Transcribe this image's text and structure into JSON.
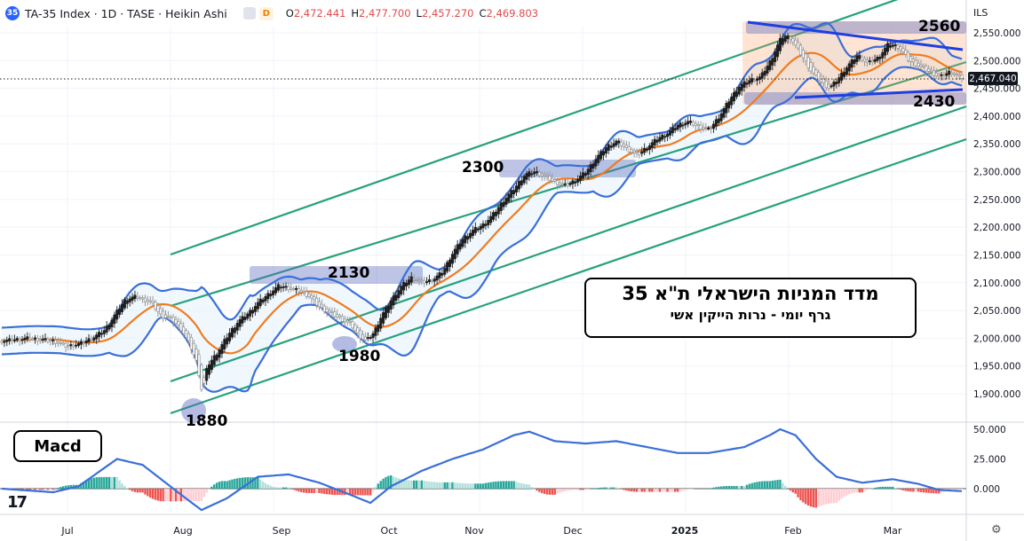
{
  "header": {
    "symbol_badge": "35",
    "title": "TA-35 Index · 1D · TASE · Heikin Ashi",
    "d_badge": "D",
    "ohlc": [
      {
        "k": "O",
        "v": "2,472.441"
      },
      {
        "k": "H",
        "v": "2,477.700"
      },
      {
        "k": "L",
        "v": "2,457.270"
      },
      {
        "k": "C",
        "v": "2,469.803"
      }
    ]
  },
  "currency": "ILS",
  "last_price_label": "2,467.040",
  "annotation_title": {
    "line1": "מדד המניות הישראלי ת\"א 35",
    "line2": "גרף  יומי   -  נרות הייקין אשי"
  },
  "macd_label": "Macd",
  "tv_logo": "17",
  "gear_icon": "⚙",
  "colors": {
    "up": "#1e1e1e",
    "down": "#e0e0e0",
    "channel": "#26a17b",
    "bollinger": "#3a6fd8",
    "ma": "#f07c1e",
    "trend": "#1f3ee0",
    "hist_pos": "#26a69a",
    "hist_neg": "#ef5350"
  },
  "chart_data": {
    "type": "candlestick",
    "price_axis": {
      "ticks": [
        "2,550.000",
        "2,500.000",
        "2,450.000",
        "2,400.000",
        "2,350.000",
        "2,300.000",
        "2,250.000",
        "2,200.000",
        "2,150.000",
        "2,100.000",
        "2,050.000",
        "2,000.000",
        "1,950.000",
        "1,900.000"
      ],
      "tick_values": [
        2550,
        2500,
        2450,
        2400,
        2350,
        2300,
        2250,
        2200,
        2150,
        2100,
        2050,
        2000,
        1950,
        1900
      ]
    },
    "macd_axis": {
      "ticks": [
        "50.000",
        "25.000",
        "0.000"
      ],
      "tick_values": [
        50,
        25,
        0
      ]
    },
    "time_axis": {
      "labels": [
        "Jul",
        "Aug",
        "Sep",
        "Oct",
        "Nov",
        "Dec",
        "2025",
        "Feb",
        "Mar"
      ]
    },
    "key_levels": [
      {
        "label": "2560",
        "value": 2560
      },
      {
        "label": "2300",
        "value": 2300
      },
      {
        "label": "2130",
        "value": 2130
      },
      {
        "label": "1980",
        "value": 1980
      },
      {
        "label": "1880",
        "value": 1880
      },
      {
        "label": "2430",
        "value": 2430
      }
    ],
    "last_price": 2467.04,
    "price_anchors": [
      [
        0,
        1995
      ],
      [
        10,
        2000
      ],
      [
        20,
        1995
      ],
      [
        25,
        1985
      ],
      [
        30,
        1990
      ],
      [
        35,
        2000
      ],
      [
        40,
        2015
      ],
      [
        45,
        2050
      ],
      [
        48,
        2070
      ],
      [
        52,
        2075
      ],
      [
        58,
        2065
      ],
      [
        62,
        2040
      ],
      [
        66,
        2035
      ],
      [
        70,
        2015
      ],
      [
        73,
        1990
      ],
      [
        76,
        1955
      ],
      [
        78,
        1900
      ],
      [
        80,
        1950
      ],
      [
        84,
        1975
      ],
      [
        88,
        2005
      ],
      [
        92,
        2030
      ],
      [
        96,
        2045
      ],
      [
        100,
        2065
      ],
      [
        104,
        2080
      ],
      [
        108,
        2095
      ],
      [
        112,
        2090
      ],
      [
        116,
        2085
      ],
      [
        120,
        2075
      ],
      [
        124,
        2055
      ],
      [
        128,
        2045
      ],
      [
        132,
        2035
      ],
      [
        136,
        2025
      ],
      [
        139,
        2005
      ],
      [
        142,
        1995
      ],
      [
        145,
        2010
      ],
      [
        148,
        2040
      ],
      [
        152,
        2070
      ],
      [
        156,
        2095
      ],
      [
        160,
        2110
      ],
      [
        164,
        2100
      ],
      [
        168,
        2105
      ],
      [
        172,
        2120
      ],
      [
        176,
        2155
      ],
      [
        180,
        2180
      ],
      [
        184,
        2195
      ],
      [
        188,
        2205
      ],
      [
        192,
        2225
      ],
      [
        196,
        2250
      ],
      [
        200,
        2270
      ],
      [
        204,
        2295
      ],
      [
        208,
        2300
      ],
      [
        212,
        2290
      ],
      [
        216,
        2280
      ],
      [
        220,
        2275
      ],
      [
        224,
        2285
      ],
      [
        228,
        2300
      ],
      [
        232,
        2325
      ],
      [
        236,
        2345
      ],
      [
        240,
        2355
      ],
      [
        244,
        2340
      ],
      [
        248,
        2330
      ],
      [
        252,
        2345
      ],
      [
        256,
        2360
      ],
      [
        260,
        2370
      ],
      [
        264,
        2385
      ],
      [
        268,
        2390
      ],
      [
        272,
        2380
      ],
      [
        276,
        2375
      ],
      [
        280,
        2400
      ],
      [
        284,
        2430
      ],
      [
        288,
        2455
      ],
      [
        292,
        2465
      ],
      [
        296,
        2470
      ],
      [
        300,
        2500
      ],
      [
        304,
        2540
      ],
      [
        306,
        2545
      ],
      [
        308,
        2540
      ],
      [
        312,
        2510
      ],
      [
        316,
        2480
      ],
      [
        320,
        2460
      ],
      [
        323,
        2450
      ],
      [
        326,
        2465
      ],
      [
        330,
        2490
      ],
      [
        334,
        2510
      ],
      [
        338,
        2495
      ],
      [
        342,
        2505
      ],
      [
        346,
        2530
      ],
      [
        350,
        2525
      ],
      [
        354,
        2500
      ],
      [
        358,
        2490
      ],
      [
        362,
        2480
      ],
      [
        366,
        2470
      ],
      [
        370,
        2480
      ],
      [
        374,
        2470
      ]
    ],
    "macd_anchors": [
      [
        0,
        0
      ],
      [
        20,
        -3
      ],
      [
        30,
        2
      ],
      [
        45,
        25
      ],
      [
        55,
        20
      ],
      [
        70,
        -5
      ],
      [
        78,
        -18
      ],
      [
        88,
        -8
      ],
      [
        100,
        10
      ],
      [
        112,
        12
      ],
      [
        124,
        5
      ],
      [
        136,
        -5
      ],
      [
        144,
        -12
      ],
      [
        152,
        2
      ],
      [
        164,
        15
      ],
      [
        176,
        25
      ],
      [
        188,
        33
      ],
      [
        200,
        45
      ],
      [
        206,
        48
      ],
      [
        216,
        40
      ],
      [
        228,
        38
      ],
      [
        240,
        40
      ],
      [
        252,
        35
      ],
      [
        264,
        30
      ],
      [
        276,
        30
      ],
      [
        290,
        35
      ],
      [
        300,
        45
      ],
      [
        304,
        50
      ],
      [
        310,
        45
      ],
      [
        318,
        25
      ],
      [
        326,
        10
      ],
      [
        336,
        5
      ],
      [
        348,
        8
      ],
      [
        358,
        4
      ],
      [
        366,
        -1
      ],
      [
        374,
        -2
      ]
    ]
  }
}
